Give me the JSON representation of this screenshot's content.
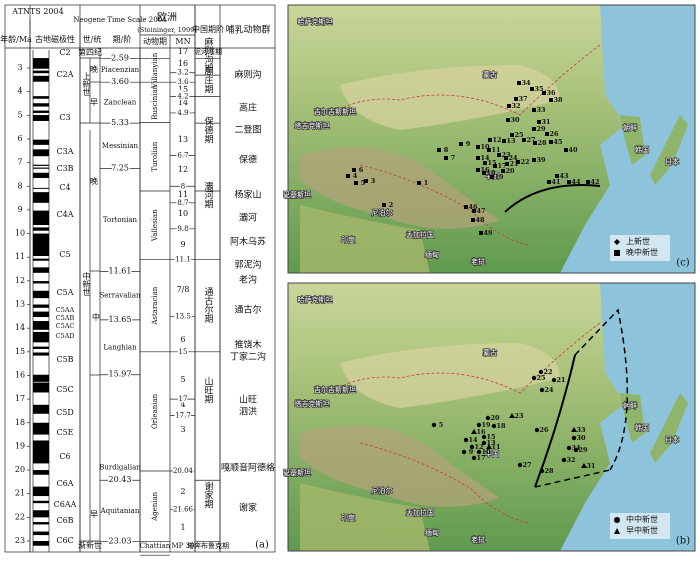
{
  "left": {
    "header": {
      "atnts": "ATNTS 2004",
      "age": "年龄/Ma",
      "polarity": "古地磁极性",
      "nts": "Neogene Time Scale 2004",
      "epoch": "世/统",
      "stage": "期/阶",
      "europe": "欧洲",
      "europe_ref": "(Steininger, 1999)",
      "europe_stage": "动物期",
      "mn": "MN",
      "china": "中国期阶",
      "fauna": "哺乳动物群"
    },
    "age_ticks": [
      "3",
      "4",
      "5",
      "6",
      "7",
      "8",
      "9",
      "10",
      "11",
      "12",
      "13",
      "14",
      "15",
      "16",
      "17",
      "18",
      "19",
      "20",
      "21",
      "22",
      "23"
    ],
    "chrons": [
      "C2",
      "C2A",
      "C3",
      "C3A",
      "C3B",
      "C4",
      "C4A",
      "C5",
      "C5A",
      "C5AA",
      "C5AB",
      "C5AC",
      "C5AD",
      "C5B",
      "C5C",
      "C5D",
      "C5E",
      "C6",
      "C6A",
      "C6AA",
      "C6B",
      "C6C"
    ],
    "epochs": [
      "第四纪",
      "上新世",
      "晚",
      "早",
      "中新世",
      "晚",
      "中",
      "早",
      "渐新世"
    ],
    "stage_bounds": [
      "2.59",
      "3.60",
      "5.33",
      "7.25",
      "11.61",
      "13.65",
      "15.97",
      "20.43",
      "23.03"
    ],
    "stages": [
      "Piacenzian",
      "Zanclean",
      "Messinian",
      "Tortonian",
      "Serravalian",
      "Langhian",
      "Burdigalian",
      "Aquitanian"
    ],
    "euro_stages": [
      "Villanyian",
      "Ruscinian",
      "Turolian",
      "Vallesian",
      "Astaracian",
      "Orleanian",
      "Agenian"
    ],
    "euro_bottom": "Chattian",
    "mn_zones": [
      "17",
      "16",
      "15",
      "14",
      "13",
      "12",
      "11",
      "10",
      "9",
      "7/8",
      "6",
      "5",
      "4",
      "3",
      "2",
      "1"
    ],
    "mn_bottom": "MP 30",
    "mn_bounds": [
      "3.2",
      "3.6",
      "4.2",
      "4.9",
      "6.7",
      "8",
      "8.7",
      "9.8",
      "11.1",
      "13.5",
      "15",
      "17",
      "17.7",
      "20.04",
      "21.66"
    ],
    "china_stages": [
      "泥河湾期",
      "麻则沟期",
      "高庄期",
      "保德期",
      "灞河期",
      "通古尔期",
      "山旺期",
      "谢家期"
    ],
    "china_bottom": "塔奔布鲁克期",
    "faunas": [
      "麻则沟",
      "高庄",
      "二登图",
      "保德",
      "杨家山",
      "灞河",
      "阿木乌苏",
      "郭泥沟",
      "老沟",
      "通古尔",
      "推饶木",
      "丁家二沟",
      "山旺",
      "泗洪",
      "嘎顺音阿德格",
      "谢家"
    ],
    "panel": "(a)"
  },
  "maps": [
    {
      "panel": "(c)",
      "labels": [
        "哈萨克斯坦",
        "蒙古",
        "吉尔吉斯斯坦",
        "塔吉克斯坦",
        "朝鲜",
        "韩国",
        "日本",
        "巴基斯坦",
        "尼泊尔",
        "印度",
        "孟加拉国",
        "缅甸",
        "老挝",
        "中国"
      ],
      "points": [
        "34",
        "35",
        "36",
        "37",
        "38",
        "32",
        "33",
        "30",
        "31",
        "29",
        "26",
        "25",
        "27",
        "28",
        "45",
        "12",
        "13",
        "9",
        "10",
        "11",
        "14",
        "15",
        "16",
        "17",
        "18",
        "19",
        "20",
        "21",
        "22",
        "23",
        "24",
        "8",
        "7",
        "6",
        "4",
        "5",
        "3",
        "1",
        "2",
        "46",
        "47",
        "48",
        "49",
        "39",
        "40",
        "41",
        "42",
        "43",
        "44"
      ],
      "legend": [
        "上新世",
        "晚中新世"
      ]
    },
    {
      "panel": "(b)",
      "labels": [
        "哈萨克斯坦",
        "蒙古",
        "吉尔吉斯斯坦",
        "塔吉克斯坦",
        "朝鲜",
        "韩国",
        "日本",
        "巴基斯坦",
        "尼泊尔",
        "印度",
        "孟加拉国",
        "缅甸",
        "老挝",
        "中国"
      ],
      "points": [
        "22",
        "25",
        "21",
        "24",
        "23",
        "20",
        "19",
        "18",
        "5",
        "16",
        "15",
        "14",
        "13",
        "12",
        "11",
        "9",
        "10",
        "17",
        "26",
        "33",
        "30",
        "34",
        "29",
        "32",
        "31",
        "27",
        "28"
      ],
      "legend": [
        "中中新世",
        "早中新世"
      ]
    }
  ]
}
